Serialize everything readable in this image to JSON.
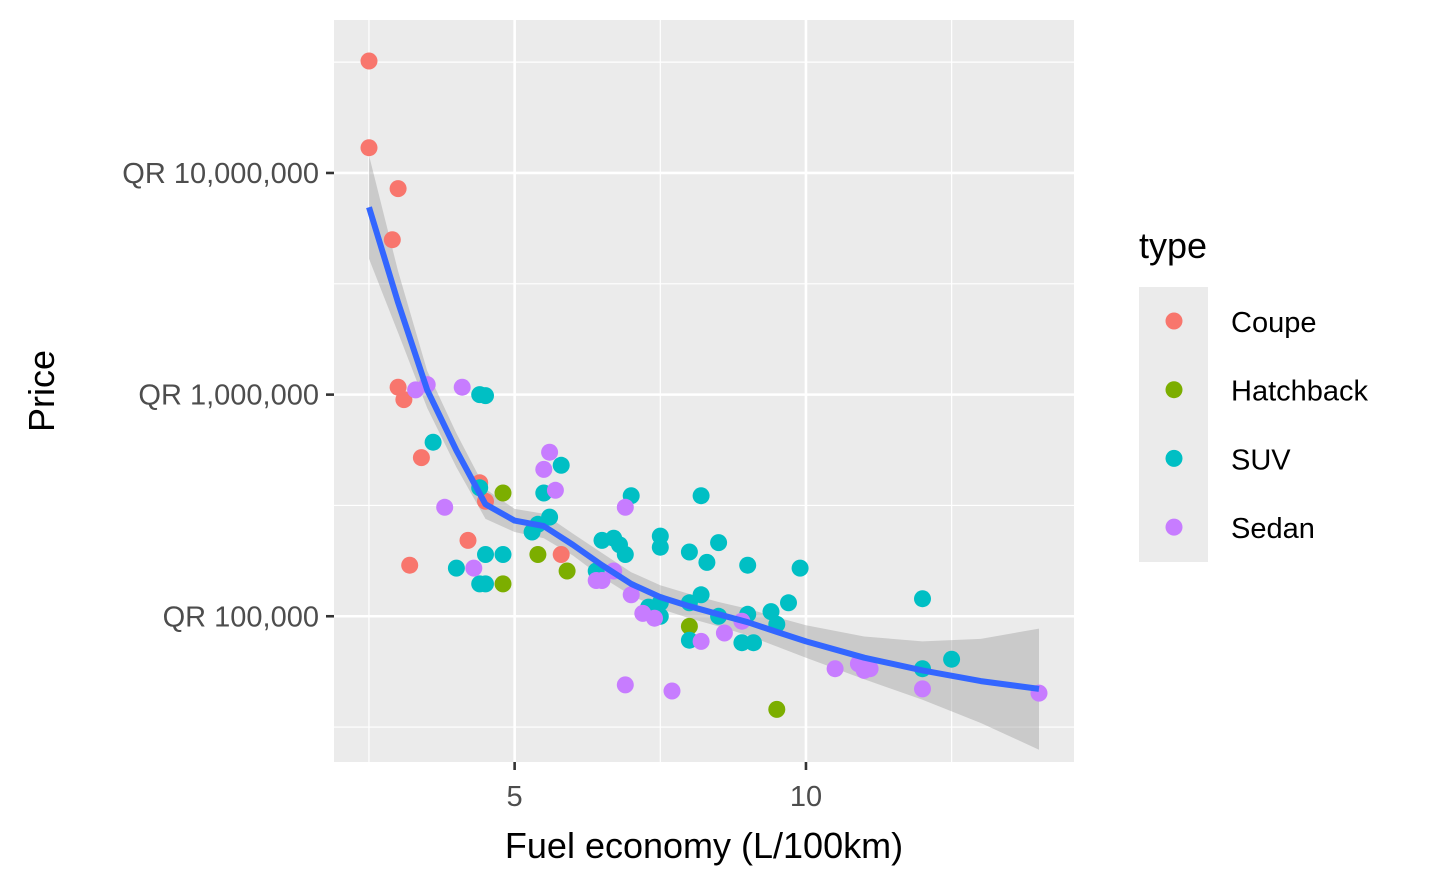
{
  "chart_data": {
    "type": "scatter",
    "xlabel": "Fuel economy (L/100km)",
    "ylabel": "Price",
    "y_scale": "log10",
    "xlim": [
      1.9,
      14.6
    ],
    "ylim": [
      22000,
      49000000
    ],
    "x_ticks": [
      5,
      10
    ],
    "x_tick_labels": [
      "5",
      "10"
    ],
    "y_ticks": [
      100000,
      1000000,
      10000000
    ],
    "y_tick_labels": [
      "QR 100,000",
      "QR 1,000,000",
      "QR 10,000,000"
    ],
    "grid": true,
    "legend": {
      "title": "type",
      "position": "right",
      "entries": [
        {
          "label": "Coupe",
          "color": "#F8766D"
        },
        {
          "label": "Hatchback",
          "color": "#7CAE00"
        },
        {
          "label": "SUV",
          "color": "#00BFC4"
        },
        {
          "label": "Sedan",
          "color": "#C77CFF"
        }
      ]
    },
    "series": [
      {
        "name": "Coupe",
        "color": "#F8766D",
        "points": [
          [
            2.5,
            32000000
          ],
          [
            2.5,
            13000000
          ],
          [
            3.0,
            8500000
          ],
          [
            2.9,
            5000000
          ],
          [
            3.0,
            1080000
          ],
          [
            3.1,
            950000
          ],
          [
            3.4,
            520000
          ],
          [
            4.4,
            400000
          ],
          [
            4.5,
            330000
          ],
          [
            4.2,
            220000
          ],
          [
            3.2,
            170000
          ],
          [
            5.8,
            190000
          ]
        ]
      },
      {
        "name": "Hatchback",
        "color": "#7CAE00",
        "points": [
          [
            4.8,
            360000
          ],
          [
            5.4,
            190000
          ],
          [
            5.9,
            160000
          ],
          [
            4.8,
            140000
          ],
          [
            8.0,
            90000
          ],
          [
            9.5,
            38000
          ]
        ]
      },
      {
        "name": "SUV",
        "color": "#00BFC4",
        "points": [
          [
            4.4,
            1000000
          ],
          [
            4.5,
            990000
          ],
          [
            3.6,
            610000
          ],
          [
            5.8,
            480000
          ],
          [
            7.0,
            350000
          ],
          [
            8.2,
            350000
          ],
          [
            5.5,
            360000
          ],
          [
            4.4,
            380000
          ],
          [
            5.6,
            280000
          ],
          [
            5.4,
            260000
          ],
          [
            5.3,
            240000
          ],
          [
            6.5,
            220000
          ],
          [
            6.7,
            225000
          ],
          [
            6.8,
            210000
          ],
          [
            6.9,
            190000
          ],
          [
            7.5,
            230000
          ],
          [
            7.5,
            205000
          ],
          [
            8.0,
            195000
          ],
          [
            8.3,
            175000
          ],
          [
            8.5,
            215000
          ],
          [
            9.0,
            170000
          ],
          [
            9.9,
            165000
          ],
          [
            4.5,
            190000
          ],
          [
            4.8,
            190000
          ],
          [
            4.0,
            165000
          ],
          [
            4.4,
            140000
          ],
          [
            4.5,
            140000
          ],
          [
            6.4,
            160000
          ],
          [
            7.3,
            110000
          ],
          [
            7.5,
            115000
          ],
          [
            8.0,
            115000
          ],
          [
            8.2,
            125000
          ],
          [
            9.7,
            115000
          ],
          [
            9.4,
            105000
          ],
          [
            9.0,
            102000
          ],
          [
            8.5,
            100000
          ],
          [
            7.5,
            100000
          ],
          [
            9.5,
            92000
          ],
          [
            8.9,
            76000
          ],
          [
            9.1,
            76000
          ],
          [
            8.0,
            78000
          ],
          [
            12.0,
            120000
          ],
          [
            12.0,
            58000
          ],
          [
            12.5,
            64000
          ]
        ]
      },
      {
        "name": "Sedan",
        "color": "#C77CFF",
        "points": [
          [
            3.5,
            1110000
          ],
          [
            3.3,
            1050000
          ],
          [
            4.1,
            1080000
          ],
          [
            5.6,
            550000
          ],
          [
            5.5,
            460000
          ],
          [
            5.7,
            370000
          ],
          [
            6.9,
            310000
          ],
          [
            3.8,
            310000
          ],
          [
            4.3,
            165000
          ],
          [
            6.7,
            160000
          ],
          [
            6.4,
            145000
          ],
          [
            6.5,
            145000
          ],
          [
            7.0,
            125000
          ],
          [
            7.2,
            103000
          ],
          [
            7.4,
            98000
          ],
          [
            8.9,
            95000
          ],
          [
            8.6,
            84000
          ],
          [
            8.2,
            77000
          ],
          [
            10.5,
            58000
          ],
          [
            10.9,
            61000
          ],
          [
            11.0,
            57000
          ],
          [
            11.1,
            58000
          ],
          [
            12.0,
            47000
          ],
          [
            6.9,
            49000
          ],
          [
            7.7,
            46000
          ],
          [
            14.0,
            45000
          ]
        ]
      }
    ],
    "trend": {
      "method": "loess",
      "color": "#3366FF",
      "points": [
        [
          2.5,
          7000000
        ],
        [
          3.0,
          2600000
        ],
        [
          3.5,
          1050000
        ],
        [
          4.0,
          560000
        ],
        [
          4.5,
          320000
        ],
        [
          5.0,
          270000
        ],
        [
          5.5,
          255000
        ],
        [
          6.0,
          210000
        ],
        [
          6.5,
          170000
        ],
        [
          7.0,
          140000
        ],
        [
          7.5,
          122000
        ],
        [
          8.0,
          111000
        ],
        [
          8.5,
          102000
        ],
        [
          9.0,
          94000
        ],
        [
          9.5,
          85000
        ],
        [
          10.0,
          77000
        ],
        [
          11.0,
          65000
        ],
        [
          12.0,
          57000
        ],
        [
          13.0,
          51000
        ],
        [
          14.0,
          47000
        ]
      ],
      "band": [
        [
          2.5,
          4100000,
          12000000
        ],
        [
          3.0,
          1900000,
          3600000
        ],
        [
          3.5,
          870000,
          1280000
        ],
        [
          4.0,
          470000,
          670000
        ],
        [
          4.5,
          275000,
          375000
        ],
        [
          5.0,
          240000,
          305000
        ],
        [
          5.5,
          225000,
          290000
        ],
        [
          6.0,
          188000,
          236000
        ],
        [
          6.5,
          150000,
          193000
        ],
        [
          7.0,
          124000,
          158000
        ],
        [
          7.5,
          108000,
          138000
        ],
        [
          8.0,
          98000,
          126000
        ],
        [
          8.5,
          90000,
          116000
        ],
        [
          9.0,
          82000,
          108000
        ],
        [
          9.5,
          73000,
          99000
        ],
        [
          10.0,
          65000,
          91000
        ],
        [
          11.0,
          52000,
          81000
        ],
        [
          12.0,
          42000,
          77000
        ],
        [
          13.0,
          33000,
          79000
        ],
        [
          14.0,
          25000,
          88000
        ]
      ]
    }
  }
}
